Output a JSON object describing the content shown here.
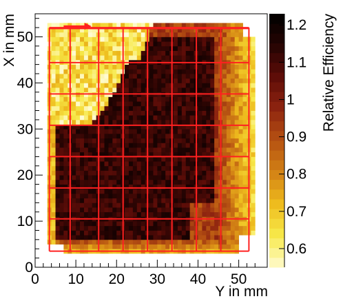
{
  "chart_data": {
    "type": "heatmap",
    "title": "",
    "xlabel": "Y in mm",
    "ylabel": "X in mm",
    "xlim": [
      0,
      57
    ],
    "ylim": [
      0,
      55
    ],
    "x_ticks": [
      "0",
      "10",
      "20",
      "30",
      "40",
      "50"
    ],
    "y_ticks": [
      "0",
      "10",
      "20",
      "30",
      "40",
      "50"
    ],
    "colorbar": {
      "label": "Relative Efficiency",
      "range": [
        0.55,
        1.23
      ],
      "ticks": [
        "0.6",
        "0.7",
        "0.8",
        "0.9",
        "1",
        "1.1",
        "1.2"
      ],
      "tick_values": [
        0.6,
        0.7,
        0.8,
        0.9,
        1.0,
        1.1,
        1.2
      ],
      "colors": [
        "#fffbd0",
        "#f7e94a",
        "#eebc1e",
        "#d38215",
        "#b65212",
        "#8e2410",
        "#5e0d08",
        "#260403",
        "#000000"
      ]
    },
    "grid_overlay": {
      "color": "#ff2020",
      "outer_box": {
        "x": [
          3.5,
          52.5
        ],
        "y": [
          3.5,
          52
        ]
      },
      "vertical_lines": [
        3.5,
        8.6,
        15.6,
        21.6,
        27.6,
        33.6,
        39.6,
        45.6,
        52.5
      ],
      "horizontal_lines": [
        3.5,
        10.5,
        17.2,
        24.0,
        30.8,
        37.6,
        44.4,
        51.8
      ]
    },
    "arrow": {
      "color": "#ff2020",
      "from": [
        7,
        52.3
      ],
      "to": [
        13.5,
        52.3
      ]
    },
    "bins": {
      "x_min": 3,
      "x_max": 54,
      "y_min": 3,
      "y_max": 53,
      "size": 1
    },
    "regions": {
      "upper_left_low_efficiency": {
        "value": 0.62,
        "x_range": [
          3,
          22
        ],
        "y_range": [
          32,
          53
        ]
      },
      "central_high_efficiency": {
        "value": 1.12
      },
      "right_edge_medium": {
        "value": 0.85,
        "x_range": [
          46,
          54
        ]
      },
      "bottom_edge_low": {
        "value": 0.7,
        "y_range": [
          3,
          6
        ]
      }
    }
  }
}
